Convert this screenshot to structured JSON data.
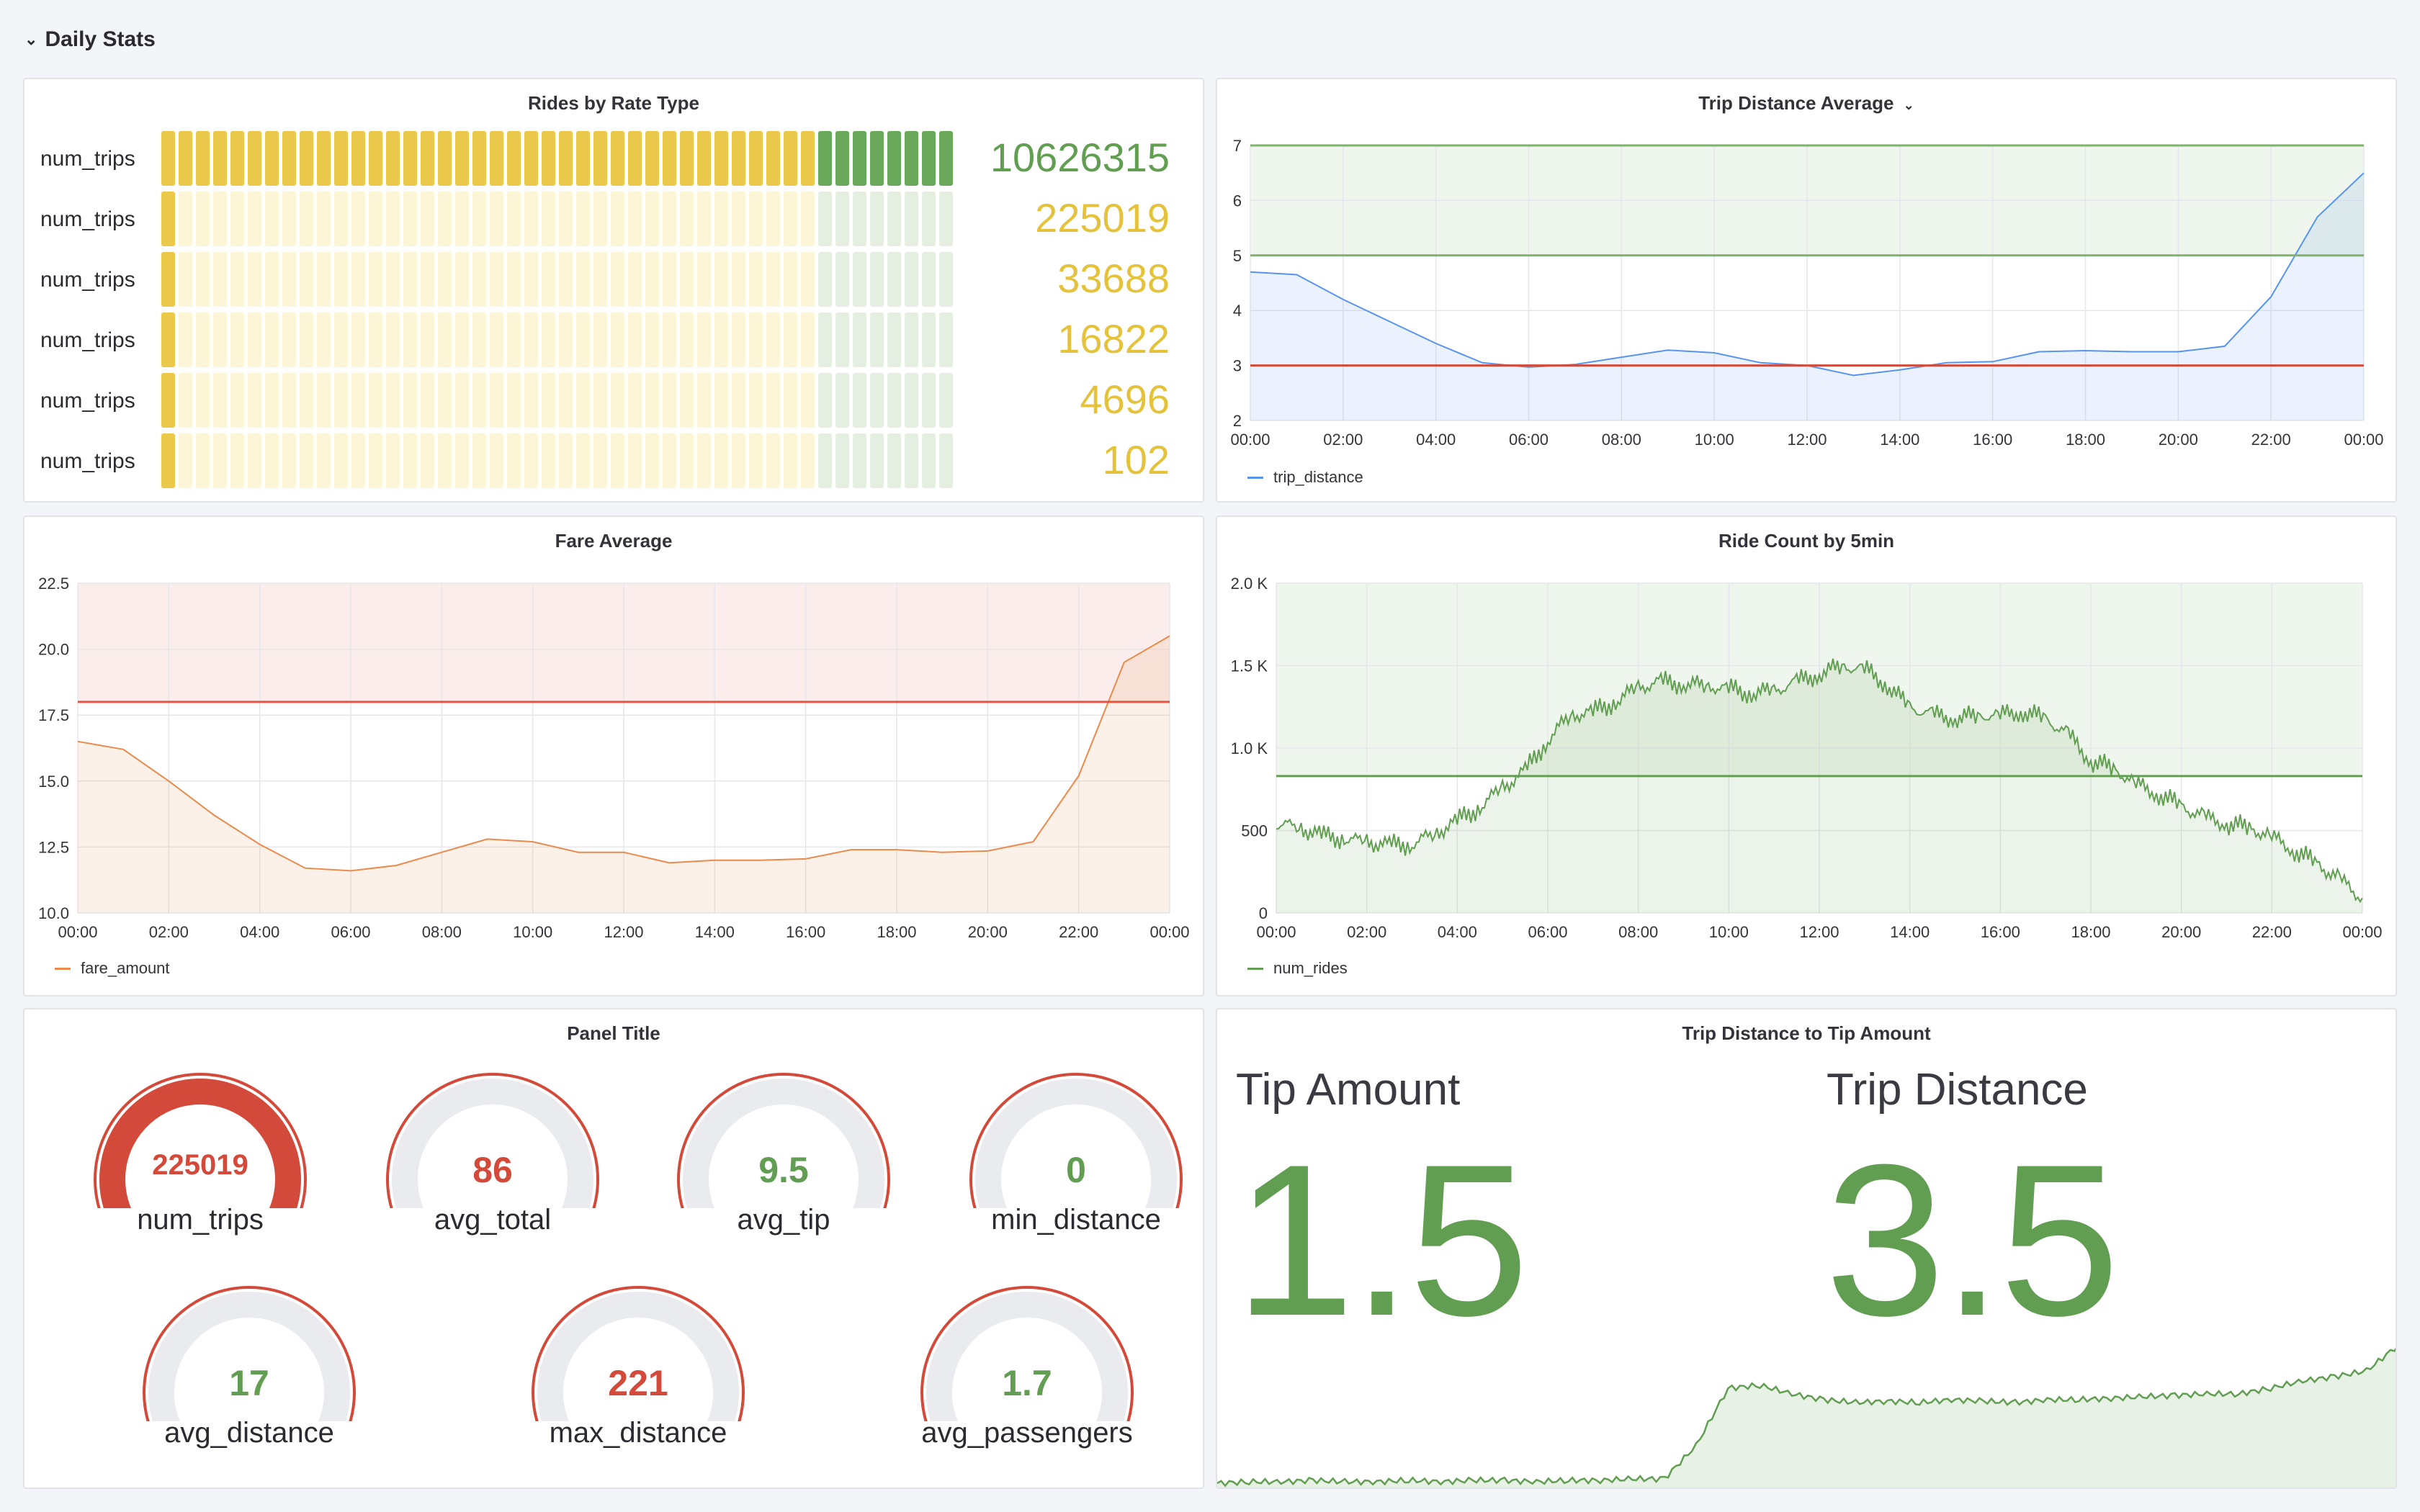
{
  "row": {
    "title": "Daily Stats"
  },
  "colors": {
    "green": "#629e51",
    "yellow": "#e5c23b",
    "red": "#d44a3a",
    "blue": "#5794f2",
    "orange": "#ea8a4b"
  },
  "panels": {
    "rides_by_rate": {
      "title": "Rides by Rate Type",
      "rows": [
        {
          "label": "num_trips",
          "value": "10626315",
          "fill": 1.0,
          "color": "green"
        },
        {
          "label": "num_trips",
          "value": "225019",
          "fill": 0.02,
          "color": "yellow"
        },
        {
          "label": "num_trips",
          "value": "33688",
          "fill": 0.003,
          "color": "yellow"
        },
        {
          "label": "num_trips",
          "value": "16822",
          "fill": 0.002,
          "color": "yellow"
        },
        {
          "label": "num_trips",
          "value": "4696",
          "fill": 0.0005,
          "color": "yellow"
        },
        {
          "label": "num_trips",
          "value": "102",
          "fill": 0.0001,
          "color": "yellow"
        }
      ]
    },
    "trip_distance_avg": {
      "title": "Trip Distance Average",
      "title_icon": "chevron-down-icon",
      "legend": "trip_distance"
    },
    "fare_avg": {
      "title": "Fare Average",
      "legend": "fare_amount"
    },
    "ride_count": {
      "title": "Ride Count by 5min",
      "legend": "num_rides"
    },
    "gauges": {
      "title": "Panel Title",
      "items": [
        {
          "label": "num_trips",
          "value": "225019",
          "fill": 1.0,
          "color": "#d44a3a"
        },
        {
          "label": "avg_total",
          "value": "86",
          "fill": 0.05,
          "color": "#d44a3a"
        },
        {
          "label": "avg_tip",
          "value": "9.5",
          "fill": 0.05,
          "color": "#629e51"
        },
        {
          "label": "min_distance",
          "value": "0",
          "fill": 0.0,
          "color": "#629e51"
        },
        {
          "label": "avg_distance",
          "value": "17",
          "fill": 0.05,
          "color": "#629e51"
        },
        {
          "label": "max_distance",
          "value": "221",
          "fill": 0.05,
          "color": "#d44a3a"
        },
        {
          "label": "avg_passengers",
          "value": "1.7",
          "fill": 0.05,
          "color": "#629e51"
        }
      ]
    },
    "trip_tip": {
      "title": "Trip Distance to Tip Amount",
      "stats": [
        {
          "label": "Tip Amount",
          "value": "1.5"
        },
        {
          "label": "Trip Distance",
          "value": "3.5"
        }
      ]
    }
  },
  "chart_data": [
    {
      "type": "line",
      "title": "Trip Distance Average",
      "x": [
        "00:00",
        "01:00",
        "02:00",
        "03:00",
        "04:00",
        "05:00",
        "06:00",
        "07:00",
        "08:00",
        "09:00",
        "10:00",
        "11:00",
        "12:00",
        "13:00",
        "14:00",
        "15:00",
        "16:00",
        "17:00",
        "18:00",
        "19:00",
        "20:00",
        "21:00",
        "22:00",
        "23:00",
        "00:00"
      ],
      "xticks": [
        "00:00",
        "02:00",
        "04:00",
        "06:00",
        "08:00",
        "10:00",
        "12:00",
        "14:00",
        "16:00",
        "18:00",
        "20:00",
        "22:00",
        "00:00"
      ],
      "series": [
        {
          "name": "trip_distance",
          "values": [
            4.7,
            4.65,
            4.2,
            3.8,
            3.4,
            3.05,
            2.97,
            3.02,
            3.15,
            3.28,
            3.23,
            3.05,
            3.0,
            2.82,
            2.92,
            3.05,
            3.07,
            3.25,
            3.27,
            3.25,
            3.25,
            3.35,
            4.25,
            5.7,
            6.5
          ]
        }
      ],
      "ylim": [
        2,
        7
      ],
      "yticks": [
        "2",
        "3",
        "4",
        "5",
        "6",
        "7"
      ],
      "thresholds": [
        3,
        5,
        7
      ]
    },
    {
      "type": "line",
      "title": "Fare Average",
      "x": [
        "00:00",
        "01:00",
        "02:00",
        "03:00",
        "04:00",
        "05:00",
        "06:00",
        "07:00",
        "08:00",
        "09:00",
        "10:00",
        "11:00",
        "12:00",
        "13:00",
        "14:00",
        "15:00",
        "16:00",
        "17:00",
        "18:00",
        "19:00",
        "20:00",
        "21:00",
        "22:00",
        "23:00",
        "00:00"
      ],
      "xticks": [
        "00:00",
        "02:00",
        "04:00",
        "06:00",
        "08:00",
        "10:00",
        "12:00",
        "14:00",
        "16:00",
        "18:00",
        "20:00",
        "22:00",
        "00:00"
      ],
      "series": [
        {
          "name": "fare_amount",
          "values": [
            16.5,
            16.2,
            15.0,
            13.7,
            12.6,
            11.7,
            11.6,
            11.8,
            12.3,
            12.8,
            12.7,
            12.3,
            12.3,
            11.9,
            12.0,
            12.0,
            12.05,
            12.4,
            12.4,
            12.3,
            12.35,
            12.7,
            15.2,
            19.5,
            20.5
          ]
        }
      ],
      "ylim": [
        10,
        22.5
      ],
      "yticks": [
        "10.0",
        "12.5",
        "15.0",
        "17.5",
        "20.0",
        "22.5"
      ],
      "thresholds": [
        18
      ]
    },
    {
      "type": "area",
      "title": "Ride Count by 5min",
      "x_hours": [
        0,
        0.5,
        1,
        1.5,
        2,
        2.5,
        3,
        3.5,
        4,
        4.5,
        5,
        5.5,
        6,
        6.5,
        7,
        7.5,
        8,
        8.5,
        9,
        9.5,
        10,
        10.5,
        11,
        11.5,
        12,
        12.5,
        13,
        13.5,
        14,
        14.5,
        15,
        15.5,
        16,
        16.5,
        17,
        17.5,
        18,
        18.5,
        19,
        19.5,
        20,
        20.5,
        21,
        21.5,
        22,
        22.5,
        23,
        23.5,
        24
      ],
      "xticks": [
        "00:00",
        "02:00",
        "04:00",
        "06:00",
        "08:00",
        "10:00",
        "12:00",
        "14:00",
        "16:00",
        "18:00",
        "20:00",
        "22:00",
        "00:00"
      ],
      "series": [
        {
          "name": "num_rides",
          "values": [
            540,
            520,
            470,
            450,
            430,
            410,
            420,
            480,
            560,
            640,
            760,
            860,
            1050,
            1200,
            1220,
            1280,
            1370,
            1400,
            1390,
            1380,
            1360,
            1330,
            1350,
            1400,
            1450,
            1500,
            1480,
            1380,
            1250,
            1200,
            1180,
            1200,
            1200,
            1220,
            1180,
            1080,
            920,
            880,
            780,
            720,
            650,
            580,
            540,
            520,
            460,
            380,
            300,
            200,
            90
          ]
        }
      ],
      "ylim": [
        0,
        2000
      ],
      "yticks": [
        "0",
        "500",
        "1.0 K",
        "1.5 K",
        "2.0 K"
      ],
      "thresholds": [
        830,
        2000
      ]
    },
    {
      "type": "area",
      "title": "Trip Distance to Tip Amount (sparkline)",
      "values": [
        0.04,
        0.05,
        0.05,
        0.06,
        0.05,
        0.05,
        0.06,
        0.05,
        0.06,
        0.06,
        0.05,
        0.06,
        0.06,
        0.07,
        0.07,
        0.3,
        0.7,
        0.72,
        0.66,
        0.62,
        0.6,
        0.61,
        0.6,
        0.62,
        0.61,
        0.6,
        0.62,
        0.62,
        0.63,
        0.64,
        0.65,
        0.66,
        0.66,
        0.7,
        0.75,
        0.78,
        0.82,
        1.0
      ]
    }
  ]
}
